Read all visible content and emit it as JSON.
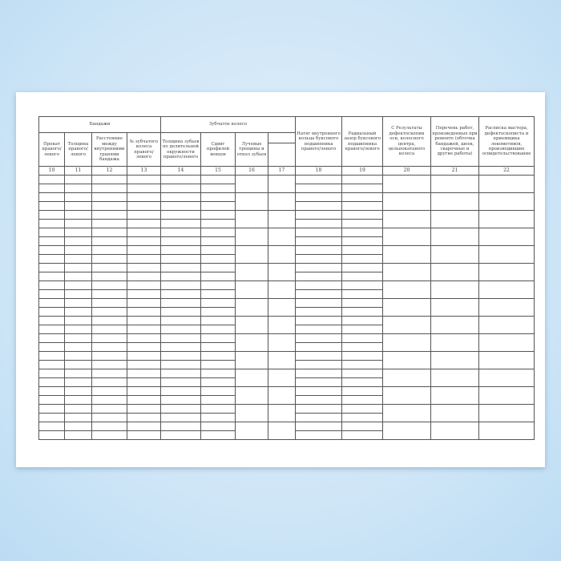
{
  "form": {
    "group_headers": {
      "bandages": "Бандажи",
      "gear_wheel": "Зубчатое колесо"
    },
    "columns": [
      {
        "num": "10",
        "label": "Прокат правого/ левого"
      },
      {
        "num": "11",
        "label": "Толщина правого/ левого"
      },
      {
        "num": "12",
        "label": "Расстояние между внутренними гранями бандажа"
      },
      {
        "num": "13",
        "label": "№ зубчатого колеса правого/ левого"
      },
      {
        "num": "14",
        "label": "Толщина зубьев по делительной окружности правого/левого"
      },
      {
        "num": "15",
        "label": "Сдвиг профилей венцов"
      },
      {
        "num": "16",
        "label": "Лучевые трещины и откол зубьев"
      },
      {
        "num": "17",
        "label": ""
      },
      {
        "num": "18",
        "label": "Натяг внутреннего кольца буксового подшипника правого/левого"
      },
      {
        "num": "19",
        "label": "Радиальный зазор буксового подшипника правого/левого"
      },
      {
        "num": "20",
        "label": "С Результаты дефектоскопии оси, колесного центра, цельнокатаного колеса"
      },
      {
        "num": "21",
        "label": "Перечень работ, произведенных при ремонте (обточка бандажей, шеек, сварочные и другие работы)"
      },
      {
        "num": "22",
        "label": "Расписка мастера, дефектоскописта и приемщика локомотивов, производивших освидетельствование"
      }
    ]
  }
}
